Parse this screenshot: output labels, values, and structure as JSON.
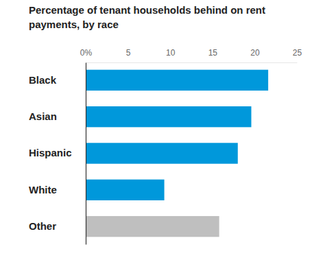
{
  "chart_data": {
    "type": "bar",
    "orientation": "horizontal",
    "title": "Percentage of tenant households behind on rent payments, by race",
    "categories": [
      "Black",
      "Asian",
      "Hispanic",
      "White",
      "Other"
    ],
    "values": [
      21.6,
      19.6,
      18.0,
      9.3,
      15.8
    ],
    "colors": [
      "#0098db",
      "#0098db",
      "#0098db",
      "#0098db",
      "#bfbfbf"
    ],
    "xlim": [
      0,
      25
    ],
    "xticks": [
      {
        "value": 0,
        "label": "0%"
      },
      5,
      10,
      15,
      20,
      25
    ],
    "grid": false
  }
}
